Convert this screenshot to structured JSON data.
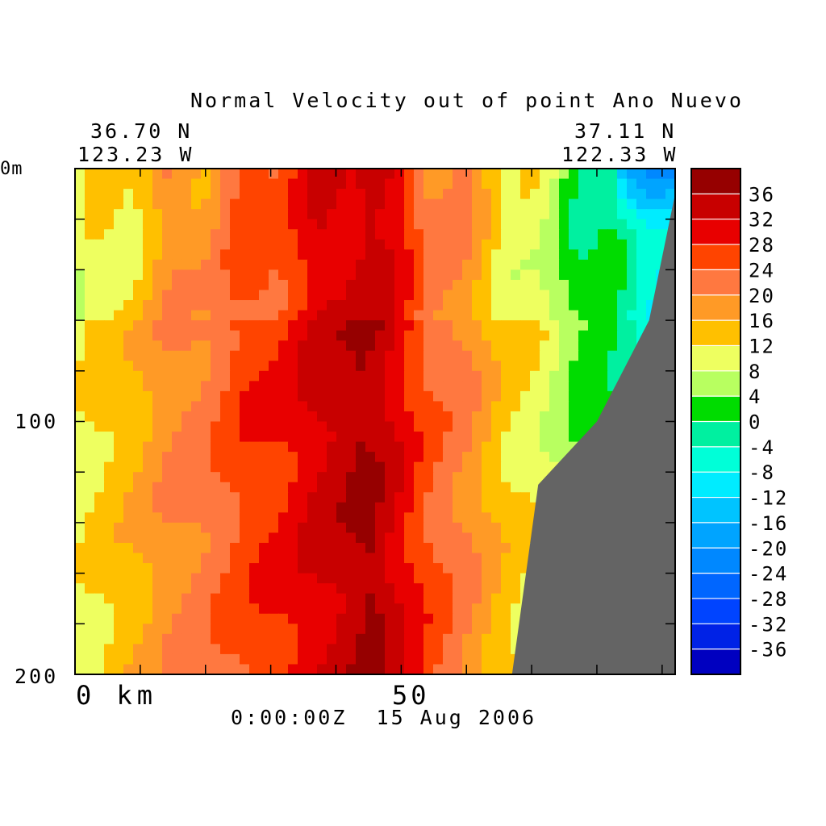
{
  "chart_data": {
    "type": "heatmap",
    "title": "Normal Velocity out of point Ano Nuevo",
    "start_location": {
      "lat": "36.70 N",
      "lon": "123.23 W"
    },
    "end_location": {
      "lat": "37.11 N",
      "lon": "122.33 W"
    },
    "timestamp": "0:00:00Z  15 Aug 2006",
    "x_axis": {
      "tick_labels": [
        "0 km",
        "50"
      ],
      "range": [
        0,
        92
      ]
    },
    "y_axis": {
      "tick_labels": [
        "0m",
        "100",
        "200"
      ],
      "range": [
        0,
        200
      ]
    },
    "colorbar": {
      "levels": [
        -40,
        -36,
        -32,
        -28,
        -24,
        -20,
        -16,
        -12,
        -8,
        -4,
        0,
        4,
        8,
        12,
        16,
        20,
        24,
        28,
        32,
        36,
        40
      ],
      "tick_labels": [
        "36",
        "32",
        "28",
        "24",
        "20",
        "16",
        "12",
        "8",
        "4",
        "0",
        "-4",
        "-8",
        "-12",
        "-16",
        "-20",
        "-24",
        "-28",
        "-32",
        "-36"
      ],
      "colors": [
        "#0000c0",
        "#0022e6",
        "#0044ff",
        "#0066ff",
        "#0088ff",
        "#00a4ff",
        "#00c4ff",
        "#00ecff",
        "#00ffd8",
        "#00f0a0",
        "#00dc00",
        "#b8ff60",
        "#eeff60",
        "#ffc000",
        "#ff9a26",
        "#ff7840",
        "#ff4400",
        "#e80000",
        "#c80000",
        "#960000"
      ]
    },
    "bathymetry_color": "#646464",
    "core_profile": [
      {
        "depth": 0,
        "x": 45
      },
      {
        "depth": 100,
        "x": 44
      },
      {
        "depth": 200,
        "x": 46
      }
    ],
    "bottom_profile": [
      {
        "x": 92,
        "depth": 10
      },
      {
        "x": 88,
        "depth": 60
      },
      {
        "x": 80,
        "depth": 100
      },
      {
        "x": 71,
        "depth": 125
      },
      {
        "x": 67,
        "depth": 200
      }
    ]
  }
}
